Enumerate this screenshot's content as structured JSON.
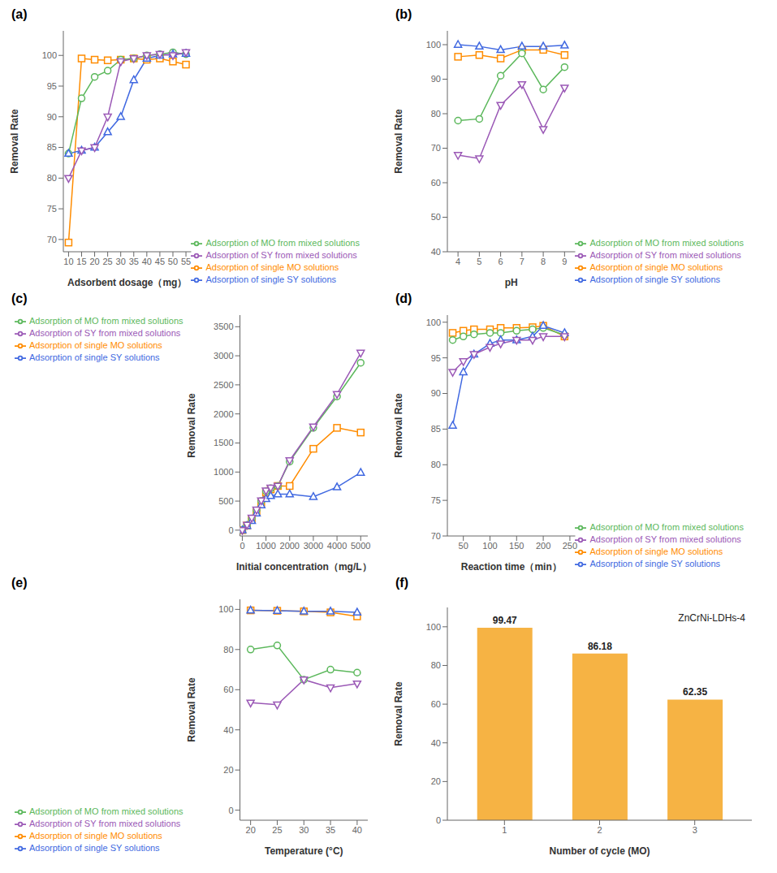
{
  "chart_data": [
    {
      "type": "line",
      "title": "(a)",
      "xlabel": "Adsorbent dosage（mg）",
      "ylabel": "Removal Rate",
      "xlim": [
        8,
        57
      ],
      "ylim": [
        68,
        104
      ],
      "xticks": [
        10,
        15,
        20,
        25,
        30,
        35,
        40,
        45,
        50,
        55
      ],
      "yticks": [
        70,
        75,
        80,
        85,
        90,
        95,
        100
      ],
      "grid": false,
      "legend": "lower right",
      "x": [
        10,
        15,
        20,
        25,
        30,
        35,
        40,
        45,
        50,
        55
      ],
      "series": [
        {
          "name": "Adsorption of single MO solutions",
          "color": "#FF8C00",
          "marker": "square",
          "values": [
            69.5,
            99.5,
            99.3,
            99.2,
            99.3,
            99.5,
            99.3,
            99.5,
            99.0,
            98.5
          ]
        },
        {
          "name": "Adsorption of MO from mixed solutions",
          "color": "#5CB85C",
          "marker": "circle",
          "values": [
            84.0,
            93.0,
            96.5,
            97.5,
            99.3,
            99.5,
            100.0,
            100.2,
            100.5,
            100.2
          ]
        },
        {
          "name": "Adsorption of single SY solutions",
          "color": "#4169E1",
          "marker": "triangle-up",
          "values": [
            84.0,
            84.5,
            85.0,
            87.5,
            90.0,
            96.0,
            99.5,
            100.0,
            100.2,
            100.3
          ]
        },
        {
          "name": "Adsorption of SY from mixed solutions",
          "color": "#9B59B6",
          "marker": "triangle-down",
          "values": [
            80.0,
            84.5,
            85.0,
            90.0,
            99.0,
            99.5,
            100.0,
            100.2,
            100.0,
            100.5
          ]
        }
      ]
    },
    {
      "type": "line",
      "title": "(b)",
      "xlabel": "pH",
      "ylabel": "Removal Rate",
      "xlim": [
        3.5,
        9.5
      ],
      "ylim": [
        40,
        104
      ],
      "xticks": [
        4,
        5,
        6,
        7,
        8,
        9
      ],
      "yticks": [
        40,
        50,
        60,
        70,
        80,
        90,
        100
      ],
      "grid": false,
      "legend": "lower right",
      "x": [
        4,
        5,
        6,
        7,
        8,
        9
      ],
      "series": [
        {
          "name": "Adsorption of single MO solutions",
          "color": "#FF8C00",
          "marker": "square",
          "values": [
            96.5,
            97.0,
            96.0,
            98.5,
            98.5,
            97.0
          ]
        },
        {
          "name": "Adsorption of MO from mixed solutions",
          "color": "#5CB85C",
          "marker": "circle",
          "values": [
            78.0,
            78.5,
            91.0,
            97.5,
            87.0,
            93.5
          ]
        },
        {
          "name": "Adsorption of single SY solutions",
          "color": "#4169E1",
          "marker": "triangle-up",
          "values": [
            100.0,
            99.5,
            98.5,
            99.5,
            99.5,
            99.8
          ]
        },
        {
          "name": "Adsorption of SY from mixed solutions",
          "color": "#9B59B6",
          "marker": "triangle-down",
          "values": [
            68.0,
            67.0,
            82.5,
            88.5,
            75.5,
            87.5
          ]
        }
      ]
    },
    {
      "type": "line",
      "title": "(c)",
      "xlabel": "Initial concentration（mg/L）",
      "ylabel": "Removal Rate",
      "xlim": [
        -100,
        5300
      ],
      "ylim": [
        -100,
        3700
      ],
      "xticks": [
        0,
        1000,
        2000,
        3000,
        4000,
        5000
      ],
      "yticks": [
        0,
        500,
        1000,
        1500,
        2000,
        2500,
        3000,
        3500
      ],
      "grid": false,
      "legend": "upper left",
      "x": [
        0,
        200,
        400,
        600,
        800,
        1000,
        1200,
        1500,
        2000,
        3000,
        4000,
        5000
      ],
      "series": [
        {
          "name": "Adsorption of single MO solutions",
          "color": "#FF8C00",
          "marker": "square",
          "values": [
            0,
            80,
            180,
            310,
            470,
            650,
            700,
            760,
            760,
            1400,
            1760,
            1680
          ]
        },
        {
          "name": "Adsorption of MO from mixed solutions",
          "color": "#5CB85C",
          "marker": "circle",
          "values": [
            0,
            90,
            200,
            340,
            500,
            670,
            720,
            760,
            1180,
            1760,
            2300,
            2880
          ]
        },
        {
          "name": "Adsorption of single SY solutions",
          "color": "#4169E1",
          "marker": "triangle-up",
          "values": [
            0,
            75,
            160,
            290,
            430,
            540,
            590,
            620,
            620,
            575,
            740,
            990
          ]
        },
        {
          "name": "Adsorption of SY from mixed solutions",
          "color": "#9B59B6",
          "marker": "triangle-down",
          "values": [
            0,
            90,
            210,
            350,
            510,
            680,
            730,
            760,
            1200,
            1780,
            2340,
            3050
          ]
        }
      ]
    },
    {
      "type": "line",
      "title": "(d)",
      "xlabel": "Reaction time（min）",
      "ylabel": "Removal Rate",
      "xlim": [
        20,
        260
      ],
      "ylim": [
        70,
        101
      ],
      "xticks": [
        50,
        100,
        150,
        200,
        250
      ],
      "yticks": [
        70,
        75,
        80,
        85,
        90,
        95,
        100
      ],
      "grid": false,
      "legend": "lower right",
      "x": [
        30,
        50,
        70,
        100,
        120,
        150,
        180,
        200,
        240
      ],
      "series": [
        {
          "name": "Adsorption of single MO solutions",
          "color": "#FF8C00",
          "marker": "square",
          "values": [
            98.5,
            98.8,
            99.0,
            99.0,
            99.2,
            99.2,
            99.3,
            99.5,
            98.0
          ]
        },
        {
          "name": "Adsorption of MO from mixed solutions",
          "color": "#5CB85C",
          "marker": "circle",
          "values": [
            97.5,
            98.0,
            98.3,
            98.5,
            98.5,
            98.8,
            99.0,
            99.2,
            98.2
          ]
        },
        {
          "name": "Adsorption of single SY solutions",
          "color": "#4169E1",
          "marker": "triangle-up",
          "values": [
            85.5,
            93.0,
            95.5,
            97.0,
            97.5,
            97.5,
            98.0,
            99.5,
            98.5
          ]
        },
        {
          "name": "Adsorption of SY from mixed solutions",
          "color": "#9B59B6",
          "marker": "triangle-down",
          "values": [
            93.0,
            94.5,
            95.5,
            96.5,
            97.0,
            97.5,
            97.5,
            98.0,
            98.0
          ]
        }
      ]
    },
    {
      "type": "line",
      "title": "(e)",
      "xlabel": "Temperature (°C)",
      "ylabel": "Removal Rate",
      "xlim": [
        18,
        42
      ],
      "ylim": [
        -5,
        105
      ],
      "xticks": [
        20,
        25,
        30,
        35,
        40
      ],
      "yticks": [
        0,
        20,
        40,
        60,
        80,
        100
      ],
      "grid": false,
      "legend": "lower left",
      "x": [
        20,
        25,
        30,
        35,
        40
      ],
      "series": [
        {
          "name": "Adsorption of single MO solutions",
          "color": "#FF8C00",
          "marker": "square",
          "values": [
            99.5,
            99.3,
            99.0,
            98.5,
            96.5
          ]
        },
        {
          "name": "Adsorption of MO from mixed solutions",
          "color": "#5CB85C",
          "marker": "circle",
          "values": [
            80.0,
            82.0,
            65.0,
            70.0,
            68.5
          ]
        },
        {
          "name": "Adsorption of single SY solutions",
          "color": "#4169E1",
          "marker": "triangle-up",
          "values": [
            99.5,
            99.3,
            99.0,
            99.0,
            98.5
          ]
        },
        {
          "name": "Adsorption of SY from mixed solutions",
          "color": "#9B59B6",
          "marker": "triangle-down",
          "values": [
            53.5,
            52.5,
            65.0,
            61.0,
            63.0
          ]
        }
      ]
    },
    {
      "type": "bar",
      "title": "(f)",
      "xlabel": "Number of cycle (MO)",
      "ylabel": "Removal Rate",
      "annotation": "ZnCrNi-LDHs-4",
      "xlim": [
        0.4,
        3.6
      ],
      "ylim": [
        0,
        110
      ],
      "xticks": [
        1,
        2,
        3
      ],
      "yticks": [
        0,
        20,
        40,
        60,
        80,
        100
      ],
      "grid": false,
      "data_labels": true,
      "color": "#F5A623",
      "x": [
        1,
        2,
        3
      ],
      "values": [
        99.47,
        86.18,
        62.35
      ]
    }
  ]
}
